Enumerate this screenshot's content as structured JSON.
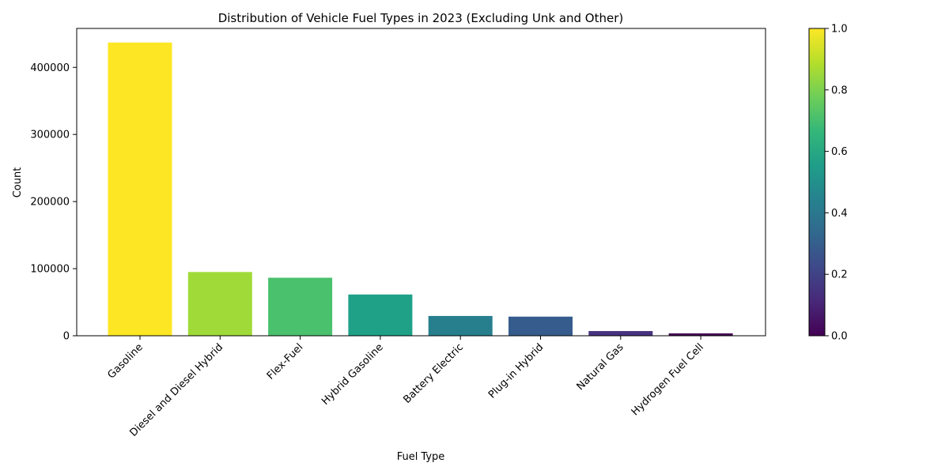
{
  "chart_data": {
    "type": "bar",
    "title": "Distribution of Vehicle Fuel Types in 2023 (Excluding Unk and Other)",
    "xlabel": "Fuel Type",
    "ylabel": "Count",
    "categories": [
      "Gasoline",
      "Diesel and Diesel Hybrid",
      "Flex-Fuel",
      "Hybrid Gasoline",
      "Battery Electric",
      "Plug-in Hybrid",
      "Natural Gas",
      "Hydrogen Fuel Cell"
    ],
    "values": [
      437000,
      95000,
      86500,
      61500,
      29500,
      28500,
      7000,
      3500
    ],
    "bar_colors": [
      "#fde725",
      "#a0da39",
      "#4ac16d",
      "#1fa187",
      "#277f8e",
      "#365c8d",
      "#46327e",
      "#440154"
    ],
    "ylim": [
      0,
      458000
    ],
    "yticks": [
      0,
      100000,
      200000,
      300000,
      400000
    ],
    "ytick_labels": [
      "0",
      "100000",
      "200000",
      "300000",
      "400000"
    ],
    "grid": false,
    "colorbar": {
      "colormap": "viridis",
      "range": [
        0,
        1
      ],
      "ticks": [
        0.0,
        0.2,
        0.4,
        0.6,
        0.8,
        1.0
      ],
      "tick_labels": [
        "0.0",
        "0.2",
        "0.4",
        "0.6",
        "0.8",
        "1.0"
      ],
      "colors": [
        "#440154",
        "#482878",
        "#3e4989",
        "#31688e",
        "#26828e",
        "#1f9e89",
        "#35b779",
        "#6ece58",
        "#b5de2b",
        "#fde725"
      ]
    }
  }
}
